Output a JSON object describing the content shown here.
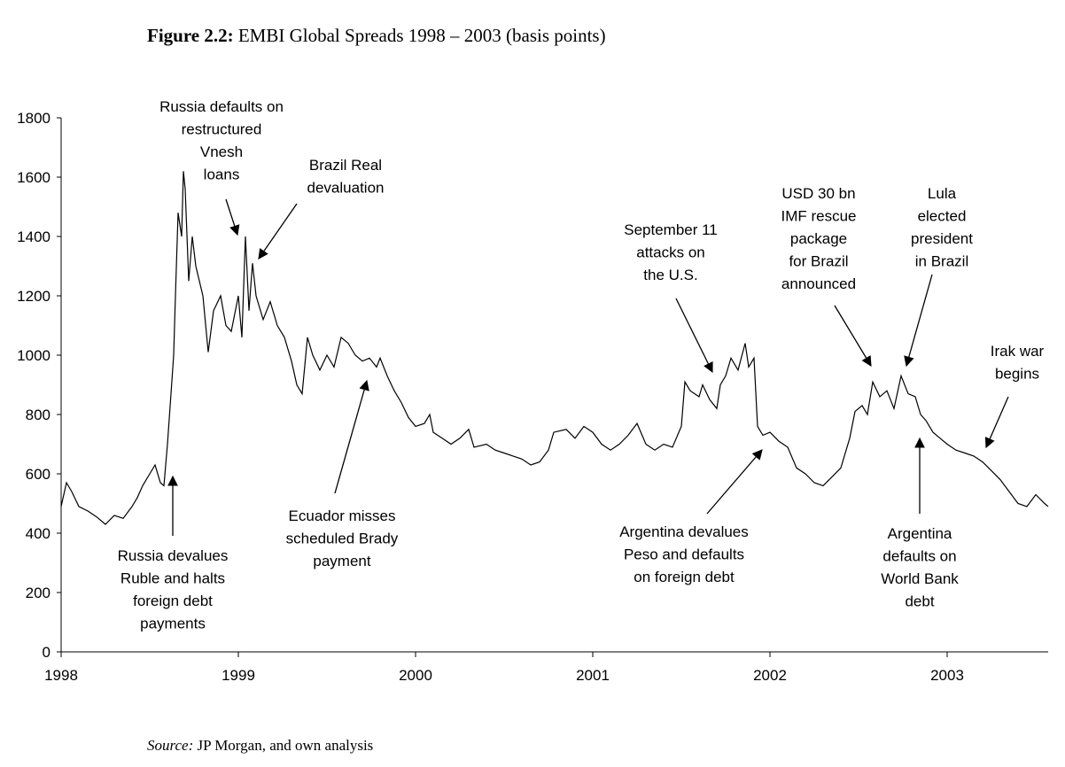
{
  "chart_data": {
    "type": "line",
    "title_label": "Figure 2.2:",
    "title": "EMBI Global Spreads 1998 – 2003 (basis points)",
    "source_label": "Source:",
    "source": "JP Morgan, and own analysis",
    "color": "#000000",
    "xlim": [
      1998,
      2003.57
    ],
    "xticks": [
      1998,
      1999,
      2000,
      2001,
      2002,
      2003
    ],
    "ylim": [
      0,
      1800
    ],
    "yticks": [
      0,
      200,
      400,
      600,
      800,
      1000,
      1200,
      1400,
      1600,
      1800
    ],
    "grid": false,
    "x": [
      1998.0,
      1998.03,
      1998.06,
      1998.1,
      1998.15,
      1998.2,
      1998.25,
      1998.3,
      1998.35,
      1998.4,
      1998.43,
      1998.46,
      1998.5,
      1998.53,
      1998.56,
      1998.58,
      1998.6,
      1998.62,
      1998.635,
      1998.645,
      1998.66,
      1998.68,
      1998.69,
      1998.7,
      1998.72,
      1998.74,
      1998.76,
      1998.8,
      1998.83,
      1998.86,
      1998.9,
      1998.93,
      1998.96,
      1999.0,
      1999.02,
      1999.04,
      1999.06,
      1999.08,
      1999.1,
      1999.14,
      1999.18,
      1999.22,
      1999.26,
      1999.3,
      1999.33,
      1999.36,
      1999.39,
      1999.42,
      1999.46,
      1999.5,
      1999.54,
      1999.58,
      1999.62,
      1999.66,
      1999.7,
      1999.74,
      1999.78,
      1999.8,
      1999.84,
      1999.88,
      1999.92,
      1999.96,
      2000.0,
      2000.05,
      2000.08,
      2000.1,
      2000.15,
      2000.2,
      2000.25,
      2000.3,
      2000.33,
      2000.4,
      2000.45,
      2000.5,
      2000.55,
      2000.6,
      2000.65,
      2000.7,
      2000.75,
      2000.78,
      2000.85,
      2000.9,
      2000.95,
      2001.0,
      2001.05,
      2001.1,
      2001.15,
      2001.2,
      2001.25,
      2001.3,
      2001.35,
      2001.4,
      2001.45,
      2001.5,
      2001.52,
      2001.55,
      2001.6,
      2001.62,
      2001.66,
      2001.7,
      2001.72,
      2001.75,
      2001.78,
      2001.82,
      2001.86,
      2001.88,
      2001.91,
      2001.93,
      2001.96,
      2002.0,
      2002.05,
      2002.1,
      2002.15,
      2002.2,
      2002.25,
      2002.3,
      2002.35,
      2002.4,
      2002.45,
      2002.48,
      2002.52,
      2002.55,
      2002.58,
      2002.62,
      2002.66,
      2002.7,
      2002.74,
      2002.78,
      2002.82,
      2002.85,
      2002.88,
      2002.92,
      2002.96,
      2003.0,
      2003.05,
      2003.1,
      2003.15,
      2003.2,
      2003.25,
      2003.3,
      2003.35,
      2003.4,
      2003.45,
      2003.5,
      2003.55,
      2003.57
    ],
    "values": [
      490,
      570,
      540,
      490,
      475,
      455,
      430,
      460,
      450,
      490,
      520,
      560,
      600,
      630,
      570,
      560,
      700,
      870,
      1000,
      1200,
      1480,
      1400,
      1620,
      1560,
      1250,
      1400,
      1300,
      1200,
      1010,
      1150,
      1200,
      1100,
      1080,
      1200,
      1060,
      1400,
      1150,
      1310,
      1200,
      1120,
      1180,
      1100,
      1060,
      980,
      900,
      870,
      1060,
      1000,
      950,
      1000,
      960,
      1060,
      1040,
      1000,
      980,
      990,
      960,
      990,
      930,
      880,
      840,
      790,
      760,
      770,
      800,
      740,
      720,
      700,
      720,
      750,
      690,
      700,
      680,
      670,
      660,
      650,
      630,
      640,
      680,
      740,
      750,
      720,
      760,
      740,
      700,
      680,
      700,
      730,
      770,
      700,
      680,
      700,
      690,
      760,
      910,
      880,
      860,
      900,
      850,
      820,
      900,
      930,
      990,
      950,
      1040,
      960,
      990,
      760,
      730,
      740,
      710,
      690,
      620,
      600,
      570,
      560,
      590,
      620,
      720,
      810,
      830,
      800,
      910,
      860,
      880,
      820,
      930,
      870,
      860,
      800,
      780,
      740,
      720,
      700,
      680,
      670,
      660,
      640,
      610,
      580,
      540,
      500,
      490,
      530,
      500,
      490
    ],
    "annotations": [
      [
        "Russia defaults on",
        "restructured",
        "Vnesh",
        "loans"
      ],
      [
        "Brazil Real",
        "devaluation"
      ],
      [
        "Russia devalues",
        "Ruble and halts",
        "foreign debt",
        "payments"
      ],
      [
        "Ecuador misses",
        "scheduled Brady",
        "payment"
      ],
      [
        "September 11",
        "attacks on",
        "the U.S."
      ],
      [
        "Argentina devalues",
        "Peso and defaults",
        "on foreign debt"
      ],
      [
        "USD 30 bn",
        "IMF rescue",
        "package",
        "for Brazil",
        "announced"
      ],
      [
        "Lula",
        "elected",
        "president",
        "in Brazil"
      ],
      [
        "Argentina",
        "defaults on",
        "World Bank",
        "debt"
      ],
      [
        "Irak war",
        "begins"
      ]
    ]
  }
}
